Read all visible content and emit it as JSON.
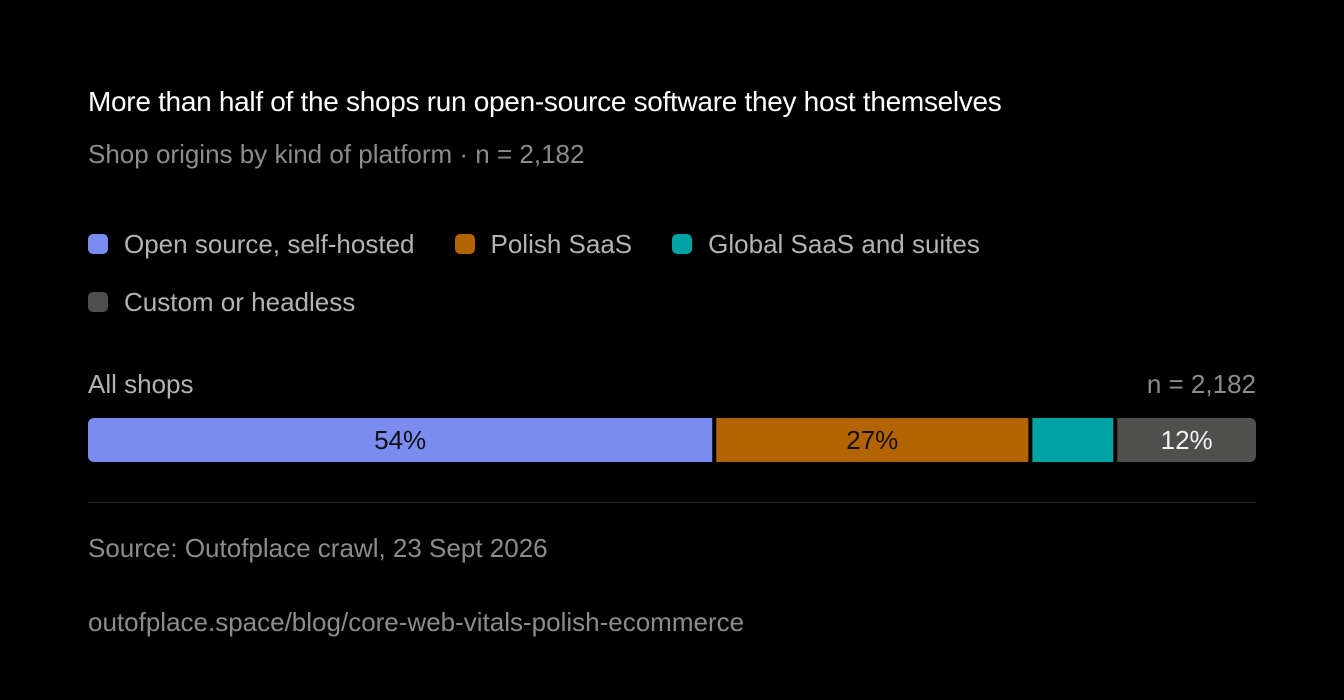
{
  "title": "More than half of the shops run open-source software they host themselves",
  "subtitle": "Shop origins by kind of platform · n = 2,182",
  "legend": [
    {
      "label": "Open source, self-hosted",
      "color": "#7b8cf0"
    },
    {
      "label": "Polish SaaS",
      "color": "#b36400"
    },
    {
      "label": "Global SaaS and suites",
      "color": "#00a3a3"
    },
    {
      "label": "Custom or headless",
      "color": "#4f4f4d"
    }
  ],
  "chart_data": {
    "type": "bar",
    "orientation": "horizontal-stacked-100",
    "categories": [
      "All shops"
    ],
    "category_label": "All shops",
    "n_label": "n = 2,182",
    "series": [
      {
        "name": "Open source, self-hosted",
        "values": [
          54
        ],
        "label": "54%",
        "label_color": "#111111",
        "color": "#7b8cf0"
      },
      {
        "name": "Polish SaaS",
        "values": [
          27
        ],
        "label": "27%",
        "label_color": "#111111",
        "color": "#b36400"
      },
      {
        "name": "Global SaaS and suites",
        "values": [
          7
        ],
        "label": "",
        "label_color": "#111111",
        "color": "#00a3a3"
      },
      {
        "name": "Custom or headless",
        "values": [
          12
        ],
        "label": "12%",
        "label_color": "#f2f2f2",
        "color": "#4f4f4d"
      }
    ],
    "xlim": [
      0,
      100
    ],
    "grid": false,
    "legend_position": "top"
  },
  "footer": {
    "source": "Source: Outofplace crawl, 23 Sept 2026",
    "url": "outofplace.space/blog/core-web-vitals-polish-ecommerce"
  }
}
